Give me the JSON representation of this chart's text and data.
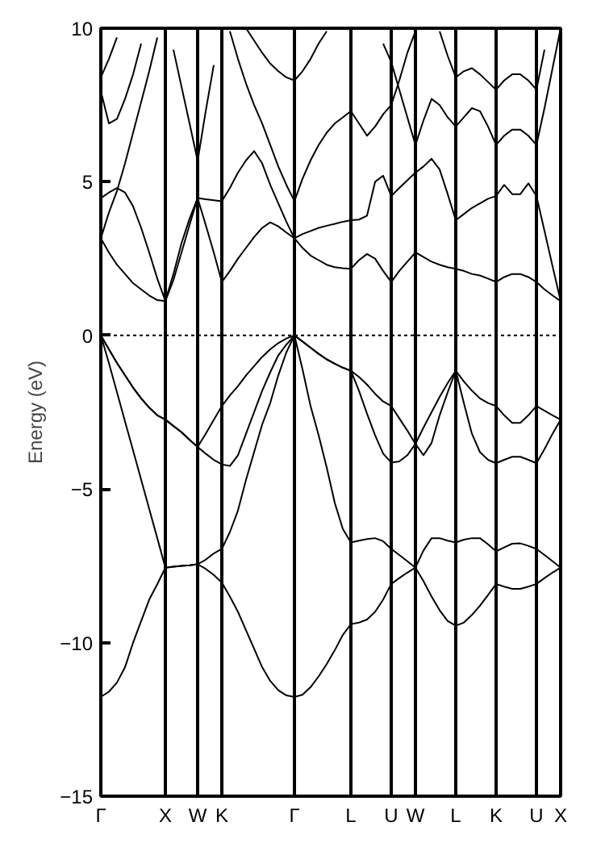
{
  "chart_data": {
    "type": "line",
    "ylabel": "Energy (eV)",
    "categories": [
      "Γ",
      null,
      null,
      null,
      null,
      null,
      null,
      null,
      "X",
      null,
      null,
      null,
      "W",
      null,
      null,
      "K",
      null,
      null,
      null,
      null,
      null,
      null,
      null,
      null,
      "Γ",
      null,
      null,
      null,
      null,
      null,
      null,
      "L",
      null,
      null,
      null,
      null,
      "U",
      null,
      null,
      "W",
      null,
      null,
      null,
      null,
      "L",
      null,
      null,
      null,
      null,
      "K",
      null,
      null,
      null,
      null,
      "U",
      null,
      null,
      "X"
    ],
    "ylim": [
      -15,
      10
    ],
    "yticks": [
      -15,
      -10,
      -5,
      0,
      5,
      10
    ],
    "grid": "x",
    "ref_lines": [
      {
        "axis": "y",
        "value": 0,
        "line_style": "dotted",
        "color": "#000000"
      }
    ],
    "series": [
      {
        "color": "#000000",
        "values": [
          -11.77,
          -11.6,
          -11.3,
          -10.8,
          -10.0,
          -9.3,
          -8.6,
          -8.1,
          -7.56,
          -7.53,
          -7.5,
          -7.48,
          -7.45,
          -7.6,
          -7.8,
          -8.05,
          -8.5,
          -9.0,
          -9.6,
          -10.2,
          -10.8,
          -11.25,
          -11.55,
          -11.72,
          -11.77,
          -11.7,
          -11.45,
          -11.1,
          -10.7,
          -10.25,
          -9.75,
          -9.4,
          -9.35,
          -9.25,
          -9.0,
          -8.6,
          -8.09,
          -7.9,
          -7.72,
          -7.56,
          -8.0,
          -8.5,
          -8.95,
          -9.3,
          -9.45,
          -9.35,
          -9.1,
          -8.8,
          -8.45,
          -8.09,
          -8.18,
          -8.25,
          -8.25,
          -8.18,
          -8.09,
          -7.9,
          -7.72,
          -7.56
        ]
      },
      {
        "color": "#000000",
        "values": [
          0,
          -0.9,
          -1.85,
          -2.8,
          -3.75,
          -4.7,
          -5.65,
          -6.6,
          -7.56,
          -7.53,
          -7.5,
          -7.48,
          -7.45,
          -7.3,
          -7.1,
          -6.95,
          -6.4,
          -5.7,
          -4.7,
          -3.8,
          -2.9,
          -2.2,
          -1.3,
          -0.55,
          0,
          -1.1,
          -2.3,
          -3.25,
          -4.3,
          -5.45,
          -6.3,
          -6.74,
          -6.68,
          -6.63,
          -6.6,
          -6.7,
          -6.95,
          -7.15,
          -7.35,
          -7.56,
          -7.0,
          -6.6,
          -6.6,
          -6.68,
          -6.74,
          -6.65,
          -6.6,
          -6.6,
          -6.8,
          -7.03,
          -6.9,
          -6.78,
          -6.77,
          -6.85,
          -6.95,
          -7.15,
          -7.35,
          -7.56
        ]
      },
      {
        "color": "#000000",
        "values": [
          0,
          -0.45,
          -0.9,
          -1.3,
          -1.7,
          -2.05,
          -2.35,
          -2.6,
          -2.74,
          -2.95,
          -3.15,
          -3.4,
          -3.63,
          -3.85,
          -4.05,
          -4.2,
          -4.25,
          -3.9,
          -3.2,
          -2.5,
          -1.8,
          -1.2,
          -0.65,
          -0.3,
          0,
          -0.2,
          -0.4,
          -0.6,
          -0.78,
          -0.92,
          -1.05,
          -1.15,
          -1.8,
          -2.55,
          -3.25,
          -3.85,
          -4.14,
          -4.1,
          -3.9,
          -3.53,
          -3.9,
          -3.5,
          -2.6,
          -1.85,
          -1.15,
          -2.2,
          -3.2,
          -3.8,
          -4.05,
          -4.16,
          -4.05,
          -3.95,
          -3.95,
          -4.05,
          -4.16,
          -3.7,
          -3.2,
          -2.74
        ]
      },
      {
        "color": "#000000",
        "values": [
          0,
          -0.45,
          -0.9,
          -1.3,
          -1.7,
          -2.05,
          -2.35,
          -2.6,
          -2.74,
          -2.95,
          -3.15,
          -3.4,
          -3.63,
          -3.2,
          -2.75,
          -2.3,
          -1.95,
          -1.65,
          -1.3,
          -1.0,
          -0.7,
          -0.45,
          -0.25,
          -0.1,
          0,
          -0.2,
          -0.4,
          -0.6,
          -0.78,
          -0.92,
          -1.05,
          -1.15,
          -1.35,
          -1.6,
          -1.9,
          -2.15,
          -2.3,
          -2.7,
          -3.1,
          -3.53,
          -3.0,
          -2.5,
          -2.0,
          -1.55,
          -1.15,
          -1.5,
          -1.8,
          -2.05,
          -2.2,
          -2.3,
          -2.6,
          -2.85,
          -2.85,
          -2.6,
          -2.3,
          -2.45,
          -2.6,
          -2.74
        ]
      },
      {
        "color": "#000000",
        "values": [
          3.16,
          2.7,
          2.3,
          2.0,
          1.7,
          1.5,
          1.3,
          1.15,
          1.12,
          1.8,
          2.7,
          3.6,
          4.47,
          3.6,
          2.7,
          1.74,
          2.1,
          2.5,
          2.85,
          3.2,
          3.5,
          3.68,
          3.55,
          3.35,
          3.16,
          2.85,
          2.6,
          2.45,
          2.3,
          2.22,
          2.19,
          2.17,
          2.45,
          2.65,
          2.5,
          2.1,
          1.74,
          2.1,
          2.4,
          2.7,
          2.55,
          2.4,
          2.3,
          2.22,
          2.17,
          2.1,
          2.0,
          1.95,
          1.85,
          1.74,
          1.9,
          2.0,
          2.0,
          1.9,
          1.74,
          1.5,
          1.3,
          1.12
        ]
      },
      {
        "color": "#000000",
        "values": [
          3.16,
          4.0,
          4.7,
          5.6,
          6.6,
          7.6,
          8.6,
          9.7,
          null,
          null,
          null,
          null,
          null,
          null,
          null,
          null,
          null,
          null,
          null,
          null,
          null,
          null,
          null,
          null,
          null,
          null,
          null,
          null,
          null,
          null,
          null,
          null,
          null,
          null,
          null,
          null,
          null,
          null,
          null,
          null,
          null,
          null,
          null,
          null,
          null,
          null,
          null,
          null,
          null,
          null,
          null,
          null,
          null,
          null,
          null,
          null,
          null,
          null
        ]
      },
      {
        "color": "#000000",
        "values": [
          4.47,
          4.65,
          4.8,
          4.65,
          4.2,
          3.5,
          2.7,
          1.85,
          1.12,
          2.0,
          3.0,
          3.8,
          4.47,
          4.43,
          4.4,
          4.37,
          4.8,
          5.3,
          5.7,
          6.0,
          5.6,
          4.9,
          4.3,
          3.7,
          3.16,
          3.3,
          3.4,
          3.5,
          3.57,
          3.63,
          3.7,
          3.75,
          3.77,
          3.9,
          5.0,
          5.2,
          4.54,
          4.8,
          5.05,
          5.3,
          5.5,
          5.75,
          5.4,
          4.6,
          3.75,
          3.95,
          4.15,
          4.3,
          4.45,
          4.54,
          4.9,
          4.6,
          4.6,
          4.95,
          4.54,
          3.4,
          2.25,
          1.12
        ]
      },
      {
        "color": "#000000",
        "values": [
          7.95,
          6.9,
          7.05,
          7.7,
          8.5,
          9.5,
          null,
          null,
          null,
          null,
          null,
          null,
          null,
          null,
          null,
          null,
          null,
          null,
          null,
          null,
          null,
          null,
          null,
          null,
          null,
          null,
          null,
          null,
          null,
          null,
          null,
          null,
          null,
          null,
          null,
          null,
          null,
          null,
          null,
          null,
          null,
          null,
          null,
          null,
          null,
          null,
          null,
          null,
          null,
          null,
          null,
          null,
          null,
          null,
          null,
          null,
          null,
          null
        ]
      },
      {
        "color": "#000000",
        "values": [
          8.4,
          9.0,
          9.7,
          null,
          null,
          null,
          null,
          null,
          null,
          null,
          null,
          null,
          null,
          null,
          null,
          null,
          null,
          null,
          null,
          null,
          null,
          null,
          null,
          null,
          null,
          null,
          null,
          null,
          null,
          null,
          null,
          null,
          null,
          null,
          null,
          null,
          null,
          null,
          null,
          null,
          null,
          null,
          null,
          null,
          null,
          null,
          null,
          null,
          null,
          null,
          null,
          null,
          null,
          null,
          null,
          null,
          null,
          null
        ]
      },
      {
        "color": "#000000",
        "values": [
          null,
          null,
          null,
          null,
          null,
          null,
          null,
          null,
          null,
          9.3,
          8.1,
          6.9,
          5.68,
          7.3,
          8.8,
          null,
          null,
          null,
          null,
          null,
          null,
          null,
          null,
          null,
          null,
          null,
          null,
          null,
          null,
          null,
          null,
          null,
          null,
          null,
          null,
          null,
          null,
          null,
          null,
          null,
          null,
          null,
          null,
          null,
          null,
          null,
          null,
          null,
          null,
          null,
          null,
          null,
          null,
          null,
          null,
          null,
          null,
          null
        ]
      },
      {
        "color": "#000000",
        "values": [
          null,
          null,
          null,
          null,
          null,
          null,
          null,
          null,
          null,
          null,
          null,
          null,
          null,
          null,
          null,
          null,
          9.9,
          9.0,
          8.2,
          7.5,
          6.9,
          6.2,
          5.5,
          4.9,
          4.37,
          null,
          null,
          null,
          null,
          null,
          null,
          null,
          null,
          null,
          null,
          null,
          null,
          null,
          null,
          null,
          null,
          null,
          null,
          null,
          null,
          null,
          null,
          null,
          null,
          null,
          null,
          null,
          null,
          null,
          null,
          null,
          null,
          null
        ]
      },
      {
        "color": "#000000",
        "values": [
          null,
          null,
          null,
          null,
          null,
          null,
          null,
          null,
          null,
          null,
          null,
          null,
          null,
          null,
          null,
          null,
          null,
          null,
          10,
          9.6,
          9.2,
          8.85,
          8.6,
          8.4,
          8.3,
          8.6,
          9.0,
          9.5,
          9.9,
          null,
          null,
          null,
          null,
          null,
          null,
          null,
          null,
          null,
          null,
          null,
          null,
          null,
          null,
          null,
          null,
          null,
          null,
          null,
          null,
          null,
          null,
          null,
          null,
          null,
          null,
          null,
          null,
          null
        ]
      },
      {
        "color": "#000000",
        "values": [
          null,
          null,
          null,
          null,
          null,
          null,
          null,
          null,
          null,
          null,
          null,
          null,
          null,
          null,
          null,
          null,
          null,
          null,
          null,
          null,
          null,
          null,
          null,
          null,
          4.37,
          5.1,
          5.7,
          6.2,
          6.6,
          6.9,
          7.1,
          7.3,
          6.9,
          6.5,
          6.8,
          7.2,
          7.5,
          8.3,
          9.2,
          9.9,
          null,
          null,
          null,
          null,
          null,
          null,
          null,
          null,
          null,
          null,
          null,
          null,
          null,
          null,
          null,
          null,
          null,
          null
        ]
      },
      {
        "color": "#000000",
        "values": [
          null,
          null,
          null,
          null,
          null,
          null,
          null,
          null,
          null,
          null,
          null,
          null,
          null,
          null,
          null,
          null,
          null,
          null,
          null,
          null,
          null,
          null,
          null,
          null,
          null,
          null,
          null,
          null,
          null,
          null,
          null,
          null,
          null,
          null,
          null,
          9.5,
          8.9,
          8.0,
          7.1,
          6.2,
          7.0,
          7.7,
          7.5,
          7.1,
          6.8,
          7.1,
          7.4,
          7.3,
          6.8,
          6.2,
          6.5,
          6.7,
          6.7,
          6.5,
          6.2,
          7.4,
          8.7,
          10
        ]
      },
      {
        "color": "#000000",
        "values": [
          null,
          null,
          null,
          null,
          null,
          null,
          null,
          null,
          null,
          null,
          null,
          null,
          null,
          null,
          null,
          null,
          null,
          null,
          null,
          null,
          null,
          null,
          null,
          null,
          null,
          null,
          null,
          null,
          null,
          null,
          null,
          null,
          null,
          null,
          null,
          null,
          null,
          null,
          null,
          null,
          null,
          null,
          9.9,
          9.1,
          8.4,
          8.6,
          8.7,
          8.5,
          8.25,
          8.0,
          8.3,
          8.5,
          8.5,
          8.3,
          8.0,
          9.3,
          null,
          null
        ]
      }
    ]
  }
}
